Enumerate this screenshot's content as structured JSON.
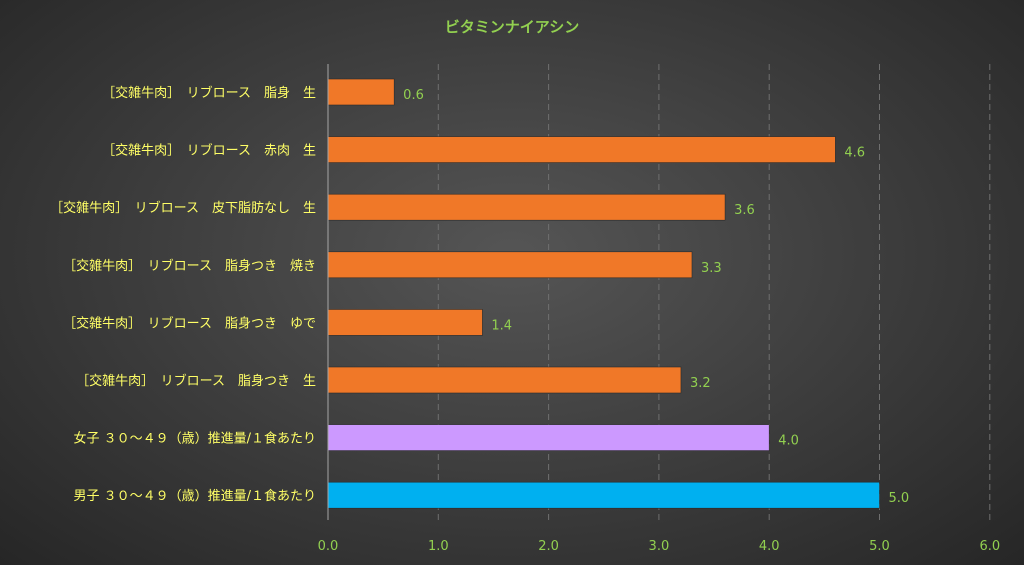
{
  "colors": {
    "background": "#3b3b3b",
    "title": "#92d050",
    "category_label": "#ffff66",
    "value_label": "#92d050",
    "tick_label": "#92d050",
    "gridline": "#6f6f6f",
    "axis_line": "#a6a6a6",
    "bar_default": "#f07828",
    "bar_female": "#cc99ff",
    "bar_male": "#00b0f0"
  },
  "chart_data": {
    "type": "bar",
    "orientation": "horizontal",
    "title": "ビタミンナイアシン",
    "xlabel": "",
    "ylabel": "",
    "xlim": [
      0,
      6
    ],
    "xticks": [
      "0.0",
      "1.0",
      "2.0",
      "3.0",
      "4.0",
      "5.0",
      "6.0"
    ],
    "grid": true,
    "legend": "none",
    "categories": [
      "［交雑牛肉］　リブロース　脂身　生",
      "［交雑牛肉］　リブロース　赤肉　生",
      "［交雑牛肉］　リブロース　皮下脂肪なし　生",
      "［交雑牛肉］　リブロース　脂身つき　焼き",
      "［交雑牛肉］　リブロース　脂身つき　ゆで",
      "［交雑牛肉］　リブロース　脂身つき　生",
      "女子 ３０～４９（歳）推進量/１食あたり",
      "男子 ３０～４９（歳）推進量/１食あたり"
    ],
    "values": [
      0.6,
      4.6,
      3.6,
      3.3,
      1.4,
      3.2,
      4.0,
      5.0
    ],
    "value_labels": [
      "0.6",
      "4.6",
      "3.6",
      "3.3",
      "1.4",
      "3.2",
      "4.0",
      "5.0"
    ],
    "bar_colors": [
      "#f07828",
      "#f07828",
      "#f07828",
      "#f07828",
      "#f07828",
      "#f07828",
      "#cc99ff",
      "#00b0f0"
    ]
  }
}
